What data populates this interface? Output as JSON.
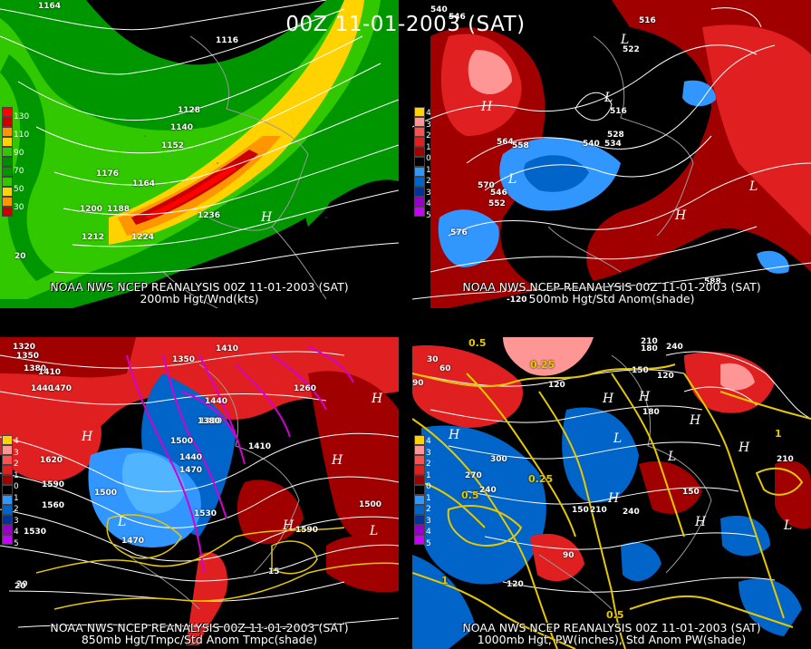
{
  "header": {
    "title": "00Z 11-01-2003 (SAT)"
  },
  "panels": [
    {
      "caption1": "NOAA NWS NCEP REANALYSIS 00Z 11-01-2003 (SAT)",
      "caption2": "200mb Hgt/Wnd(kts)",
      "legend": [
        "130",
        "110",
        "90",
        "70",
        "50",
        "30"
      ],
      "contour_labels": [
        "1164",
        "1116",
        "1128",
        "1140",
        "1152",
        "1176",
        "1164",
        "1200",
        "1188",
        "1212",
        "1224",
        "1236"
      ],
      "highs": [
        "H"
      ],
      "lows": [],
      "side_values": [
        "20"
      ]
    },
    {
      "caption1": "NOAA NWS NCEP REANALYSIS 00Z 11-01-2003 (SAT)",
      "caption2": "500mb Hgt/Std Anom(shade)",
      "legend": [
        "4",
        "3",
        "2",
        "1",
        "0",
        "1",
        "2",
        "3",
        "4",
        "5"
      ],
      "contour_labels": [
        "540",
        "546",
        "516",
        "522",
        "528",
        "534",
        "540",
        "516",
        "564",
        "558",
        "570",
        "546",
        "552",
        "576",
        "588"
      ],
      "highs": [
        "H",
        "H"
      ],
      "lows": [
        "L",
        "L",
        "L",
        "L"
      ],
      "side_values": [
        "-120"
      ]
    },
    {
      "caption1": "NOAA NWS NCEP REANALYSIS 00Z 11-01-2003 (SAT)",
      "caption2": "850mb Hgt/Tmpc/Std Anom Tmpc(shade)",
      "legend": [
        "4",
        "3",
        "2",
        "1",
        "0",
        "1",
        "2",
        "3",
        "4",
        "5"
      ],
      "contour_labels": [
        "1320",
        "1350",
        "1380",
        "1410",
        "1440",
        "1470",
        "1620",
        "1590",
        "1560",
        "1530",
        "1500",
        "1470",
        "1440",
        "1410",
        "1380",
        "1350",
        "1500",
        "1590",
        "1410",
        "1380",
        "1440",
        "1470",
        "1530",
        "1500",
        "1260",
        "15",
        "20"
      ],
      "highs": [
        "H",
        "H",
        "H",
        "H"
      ],
      "lows": [
        "L",
        "L"
      ],
      "side_values": [
        "20"
      ]
    },
    {
      "caption1": "NOAA NWS NCEP REANALYSIS 00Z 11-01-2003 (SAT)",
      "caption2": "1000mb Hgt, PW(inches), Std Anom PW(shade)",
      "legend": [
        "4",
        "3",
        "2",
        "1",
        "0",
        "1",
        "2",
        "3",
        "4",
        "5"
      ],
      "contour_labels": [
        "0.5",
        "30",
        "60",
        "90",
        "0.25",
        "120",
        "210",
        "180",
        "240",
        "150",
        "180",
        "120",
        "300",
        "270",
        "240",
        "0.25",
        "0.5",
        "150",
        "210",
        "240",
        "90",
        "120",
        "150",
        "210",
        "1",
        "0.5",
        "1"
      ],
      "highs": [
        "H",
        "H",
        "H",
        "H",
        "H",
        "H",
        "H"
      ],
      "lows": [
        "L",
        "L",
        "L"
      ],
      "side_values": []
    }
  ],
  "colors": {
    "wind": [
      "#ff0000",
      "#c80000",
      "#ff9600",
      "#ffd200",
      "#32c800",
      "#008c00"
    ],
    "anom_pos": [
      "#ffd200",
      "#ff9696",
      "#ff5050",
      "#e02020",
      "#a00000"
    ],
    "anom_neg": [
      "#0064c8",
      "#3296ff",
      "#0032a0",
      "#9600c8",
      "#c800ff"
    ],
    "temp_contour": "#d200d2",
    "pw_contour": "#e6c800"
  }
}
